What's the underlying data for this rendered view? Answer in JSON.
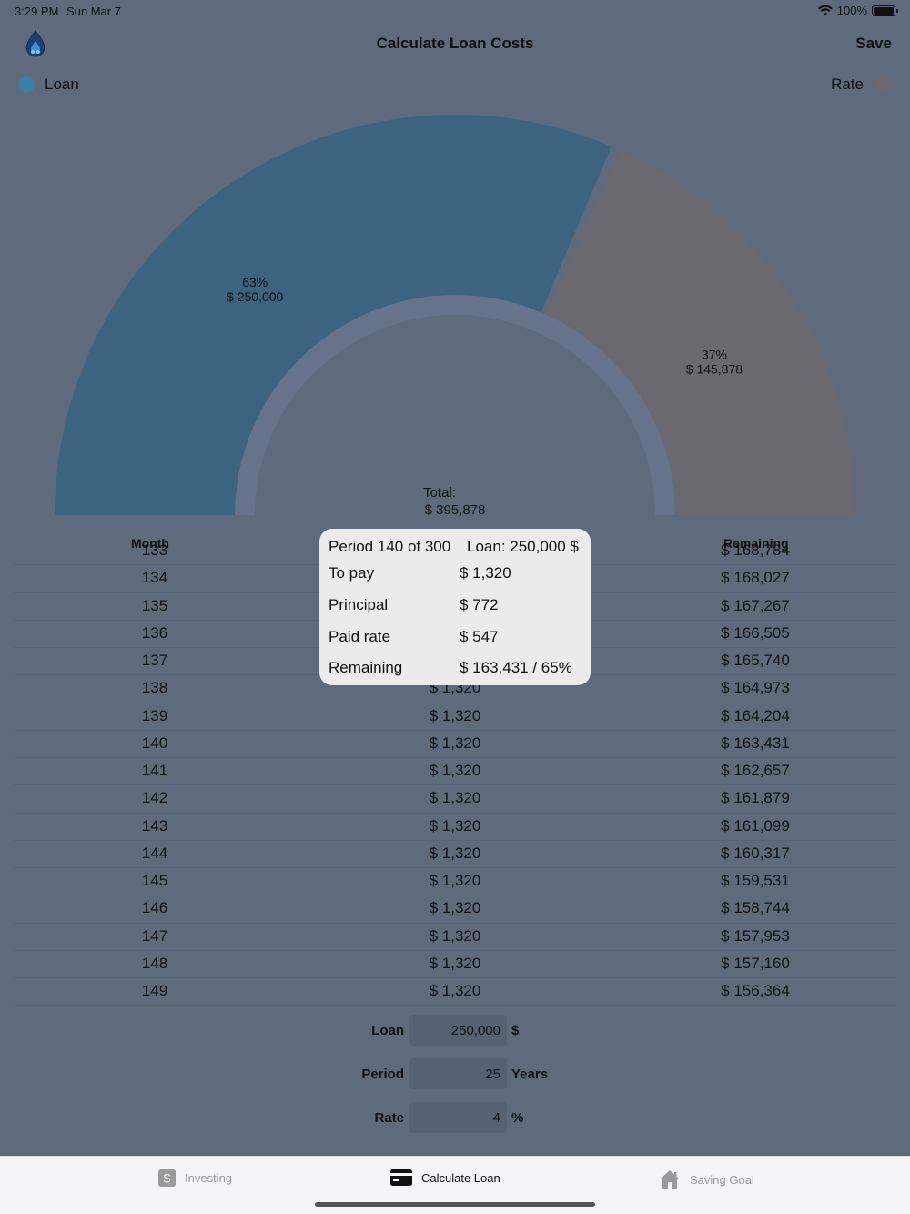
{
  "status_bar": {
    "time": "3:29 PM",
    "date": "Sun Mar 7",
    "battery": "100%"
  },
  "nav": {
    "title": "Calculate Loan Costs",
    "save_label": "Save"
  },
  "legend": {
    "loan": "Loan",
    "rate": "Rate"
  },
  "colors": {
    "loan": "#3c6480",
    "rate": "#6a6870",
    "background": "#5f6a7c",
    "popup": "#ebebeb"
  },
  "chart_data": {
    "type": "pie",
    "categories": [
      "Loan",
      "Rate"
    ],
    "values": [
      250000,
      145878
    ],
    "slices": [
      {
        "percent": "63%",
        "amount": "$ 250,000"
      },
      {
        "percent": "37%",
        "amount": "$ 145,878"
      }
    ],
    "total_label": "Total:",
    "total_value": "$ 395,878"
  },
  "table": {
    "headers": {
      "month": "Month",
      "remaining": "Remaining"
    },
    "rows": [
      {
        "month": "133",
        "pay": "",
        "remaining": "$ 168,784"
      },
      {
        "month": "134",
        "pay": "",
        "remaining": "$ 168,027"
      },
      {
        "month": "135",
        "pay": "",
        "remaining": "$ 167,267"
      },
      {
        "month": "136",
        "pay": "",
        "remaining": "$ 166,505"
      },
      {
        "month": "137",
        "pay": "",
        "remaining": "$ 165,740"
      },
      {
        "month": "138",
        "pay": "$ 1,320",
        "remaining": "$ 164,973"
      },
      {
        "month": "139",
        "pay": "$ 1,320",
        "remaining": "$ 164,204"
      },
      {
        "month": "140",
        "pay": "$ 1,320",
        "remaining": "$ 163,431"
      },
      {
        "month": "141",
        "pay": "$ 1,320",
        "remaining": "$ 162,657"
      },
      {
        "month": "142",
        "pay": "$ 1,320",
        "remaining": "$ 161,879"
      },
      {
        "month": "143",
        "pay": "$ 1,320",
        "remaining": "$ 161,099"
      },
      {
        "month": "144",
        "pay": "$ 1,320",
        "remaining": "$ 160,317"
      },
      {
        "month": "145",
        "pay": "$ 1,320",
        "remaining": "$ 159,531"
      },
      {
        "month": "146",
        "pay": "$ 1,320",
        "remaining": "$ 158,744"
      },
      {
        "month": "147",
        "pay": "$ 1,320",
        "remaining": "$ 157,953"
      },
      {
        "month": "148",
        "pay": "$ 1,320",
        "remaining": "$ 157,160"
      },
      {
        "month": "149",
        "pay": "$ 1,320",
        "remaining": "$ 156,364"
      }
    ]
  },
  "popup": {
    "period": "Period 140 of 300",
    "loan": "Loan: 250,000 $",
    "rows": [
      {
        "key": "To pay",
        "value": "$ 1,320"
      },
      {
        "key": "Principal",
        "value": "$ 772"
      },
      {
        "key": "Paid rate",
        "value": "$ 547"
      },
      {
        "key": "Remaining",
        "value": "$ 163,431 / 65%"
      }
    ]
  },
  "form": {
    "loan": {
      "label": "Loan",
      "value": "250,000",
      "unit": "$"
    },
    "period": {
      "label": "Period",
      "value": "25",
      "unit": "Years"
    },
    "rate": {
      "label": "Rate",
      "value": "4",
      "unit": "%"
    }
  },
  "tabs": [
    {
      "label": "Investing",
      "icon": "dollar-icon"
    },
    {
      "label": "Calculate Loan",
      "icon": "credit-card-icon"
    },
    {
      "label": "Saving Goal",
      "icon": "house-icon"
    }
  ]
}
